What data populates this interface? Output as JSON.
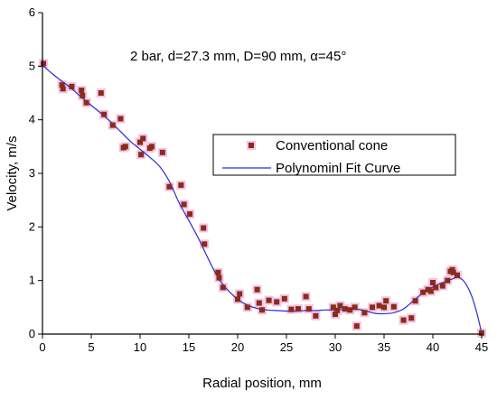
{
  "chart_data": {
    "type": "scatter",
    "title": "",
    "annotation": "2 bar, d=27.3 mm, D=90 mm, α=45°",
    "xlabel": "Radial position, mm",
    "ylabel": "Velocity, m/s",
    "xlim": [
      0,
      45
    ],
    "ylim": [
      0,
      6
    ],
    "xticks": [
      0,
      5,
      10,
      15,
      20,
      25,
      30,
      35,
      40,
      45
    ],
    "yticks": [
      0,
      1,
      2,
      3,
      4,
      5,
      6
    ],
    "grid": false,
    "legend_position": "center-right",
    "series": [
      {
        "name": "Conventional cone",
        "kind": "scatter",
        "color": "#8b2b1a",
        "halo_color": "#f2c4e4",
        "points": [
          [
            0.1,
            5.05
          ],
          [
            2.0,
            4.65
          ],
          [
            2.1,
            4.58
          ],
          [
            3.0,
            4.62
          ],
          [
            4.0,
            4.55
          ],
          [
            4.1,
            4.45
          ],
          [
            4.5,
            4.32
          ],
          [
            6.0,
            4.5
          ],
          [
            6.3,
            4.1
          ],
          [
            7.2,
            3.9
          ],
          [
            8.0,
            4.02
          ],
          [
            8.3,
            3.48
          ],
          [
            8.5,
            3.5
          ],
          [
            10.0,
            3.58
          ],
          [
            10.1,
            3.35
          ],
          [
            10.3,
            3.65
          ],
          [
            11.0,
            3.47
          ],
          [
            11.2,
            3.5
          ],
          [
            12.3,
            3.39
          ],
          [
            13.0,
            2.75
          ],
          [
            14.2,
            2.78
          ],
          [
            14.5,
            2.42
          ],
          [
            15.1,
            2.24
          ],
          [
            16.5,
            1.98
          ],
          [
            16.6,
            1.68
          ],
          [
            18.0,
            1.15
          ],
          [
            18.1,
            1.05
          ],
          [
            18.5,
            0.87
          ],
          [
            20.0,
            0.65
          ],
          [
            20.2,
            0.75
          ],
          [
            21.0,
            0.5
          ],
          [
            22.0,
            0.83
          ],
          [
            22.2,
            0.58
          ],
          [
            22.5,
            0.45
          ],
          [
            23.2,
            0.63
          ],
          [
            24.0,
            0.6
          ],
          [
            24.8,
            0.66
          ],
          [
            25.5,
            0.46
          ],
          [
            26.2,
            0.47
          ],
          [
            27.0,
            0.7
          ],
          [
            27.3,
            0.47
          ],
          [
            28.0,
            0.34
          ],
          [
            29.8,
            0.5
          ],
          [
            30.0,
            0.37
          ],
          [
            30.2,
            0.44
          ],
          [
            30.5,
            0.53
          ],
          [
            31.0,
            0.47
          ],
          [
            31.5,
            0.45
          ],
          [
            32.0,
            0.5
          ],
          [
            32.2,
            0.15
          ],
          [
            33.0,
            0.4
          ],
          [
            33.8,
            0.5
          ],
          [
            34.5,
            0.53
          ],
          [
            35.0,
            0.5
          ],
          [
            35.2,
            0.62
          ],
          [
            36.0,
            0.51
          ],
          [
            37.0,
            0.26
          ],
          [
            37.8,
            0.3
          ],
          [
            38.2,
            0.62
          ],
          [
            39.0,
            0.78
          ],
          [
            39.5,
            0.83
          ],
          [
            39.8,
            0.8
          ],
          [
            40.0,
            0.96
          ],
          [
            40.3,
            0.87
          ],
          [
            41.0,
            0.9
          ],
          [
            41.5,
            1.0
          ],
          [
            41.8,
            1.17
          ],
          [
            42.0,
            1.2
          ],
          [
            42.1,
            1.15
          ],
          [
            42.5,
            1.1
          ],
          [
            45.0,
            0.02
          ]
        ]
      },
      {
        "name": "Polynominl Fit Curve",
        "kind": "line",
        "color": "#2b2bd6",
        "points": [
          [
            0,
            5.02
          ],
          [
            1,
            4.86
          ],
          [
            2,
            4.72
          ],
          [
            3,
            4.58
          ],
          [
            4,
            4.42
          ],
          [
            5,
            4.27
          ],
          [
            6,
            4.12
          ],
          [
            7,
            3.96
          ],
          [
            8,
            3.78
          ],
          [
            9,
            3.6
          ],
          [
            10,
            3.45
          ],
          [
            11,
            3.3
          ],
          [
            12,
            3.13
          ],
          [
            13,
            2.85
          ],
          [
            14,
            2.45
          ],
          [
            15,
            2.12
          ],
          [
            16,
            1.78
          ],
          [
            17,
            1.4
          ],
          [
            18,
            1.05
          ],
          [
            19,
            0.82
          ],
          [
            20,
            0.65
          ],
          [
            21,
            0.54
          ],
          [
            22,
            0.48
          ],
          [
            23,
            0.45
          ],
          [
            24,
            0.44
          ],
          [
            25,
            0.43
          ],
          [
            26,
            0.43
          ],
          [
            27,
            0.44
          ],
          [
            28,
            0.44
          ],
          [
            29,
            0.45
          ],
          [
            30,
            0.45
          ],
          [
            31,
            0.46
          ],
          [
            32,
            0.47
          ],
          [
            33,
            0.44
          ],
          [
            34,
            0.39
          ],
          [
            35,
            0.38
          ],
          [
            36,
            0.4
          ],
          [
            37,
            0.47
          ],
          [
            38,
            0.62
          ],
          [
            39,
            0.77
          ],
          [
            40,
            0.88
          ],
          [
            41,
            0.96
          ],
          [
            42,
            1.03
          ],
          [
            42.5,
            1.06
          ],
          [
            43,
            1.02
          ],
          [
            43.5,
            0.9
          ],
          [
            44,
            0.7
          ],
          [
            44.5,
            0.4
          ],
          [
            45,
            0.02
          ]
        ]
      }
    ]
  }
}
